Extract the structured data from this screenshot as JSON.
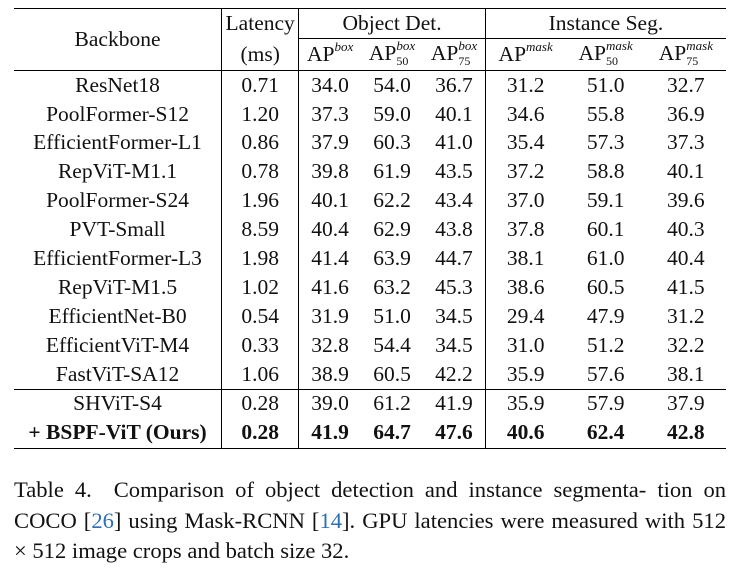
{
  "table": {
    "header": {
      "backbone": "Backbone",
      "latency_line1": "Latency",
      "latency_line2": "(ms)",
      "group_det": "Object Det.",
      "group_seg": "Instance Seg.",
      "sub_cols": [
        {
          "base": "AP",
          "sup": "box",
          "sub": ""
        },
        {
          "base": "AP",
          "sup": "box",
          "sub": "50"
        },
        {
          "base": "AP",
          "sup": "box",
          "sub": "75"
        },
        {
          "base": "AP",
          "sup": "mask",
          "sub": ""
        },
        {
          "base": "AP",
          "sup": "mask",
          "sub": "50"
        },
        {
          "base": "AP",
          "sup": "mask",
          "sub": "75"
        }
      ]
    },
    "rows": [
      {
        "backbone": "ResNet18",
        "latency": "0.71",
        "ap_box": "34.0",
        "ap_box50": "54.0",
        "ap_box75": "36.7",
        "ap_mask": "31.2",
        "ap_mask50": "51.0",
        "ap_mask75": "32.7"
      },
      {
        "backbone": "PoolFormer-S12",
        "latency": "1.20",
        "ap_box": "37.3",
        "ap_box50": "59.0",
        "ap_box75": "40.1",
        "ap_mask": "34.6",
        "ap_mask50": "55.8",
        "ap_mask75": "36.9"
      },
      {
        "backbone": "EfficientFormer-L1",
        "latency": "0.86",
        "ap_box": "37.9",
        "ap_box50": "60.3",
        "ap_box75": "41.0",
        "ap_mask": "35.4",
        "ap_mask50": "57.3",
        "ap_mask75": "37.3"
      },
      {
        "backbone": "RepViT-M1.1",
        "latency": "0.78",
        "ap_box": "39.8",
        "ap_box50": "61.9",
        "ap_box75": "43.5",
        "ap_mask": "37.2",
        "ap_mask50": "58.8",
        "ap_mask75": "40.1"
      },
      {
        "backbone": "PoolFormer-S24",
        "latency": "1.96",
        "ap_box": "40.1",
        "ap_box50": "62.2",
        "ap_box75": "43.4",
        "ap_mask": "37.0",
        "ap_mask50": "59.1",
        "ap_mask75": "39.6"
      },
      {
        "backbone": "PVT-Small",
        "latency": "8.59",
        "ap_box": "40.4",
        "ap_box50": "62.9",
        "ap_box75": "43.8",
        "ap_mask": "37.8",
        "ap_mask50": "60.1",
        "ap_mask75": "40.3"
      },
      {
        "backbone": "EfficientFormer-L3",
        "latency": "1.98",
        "ap_box": "41.4",
        "ap_box50": "63.9",
        "ap_box75": "44.7",
        "ap_mask": "38.1",
        "ap_mask50": "61.0",
        "ap_mask75": "40.4"
      },
      {
        "backbone": "RepViT-M1.5",
        "latency": "1.02",
        "ap_box": "41.6",
        "ap_box50": "63.2",
        "ap_box75": "45.3",
        "ap_mask": "38.6",
        "ap_mask50": "60.5",
        "ap_mask75": "41.5"
      },
      {
        "backbone": "EfficientNet-B0",
        "latency": "0.54",
        "ap_box": "31.9",
        "ap_box50": "51.0",
        "ap_box75": "34.5",
        "ap_mask": "29.4",
        "ap_mask50": "47.9",
        "ap_mask75": "31.2"
      },
      {
        "backbone": "EfficientViT-M4",
        "latency": "0.33",
        "ap_box": "32.8",
        "ap_box50": "54.4",
        "ap_box75": "34.5",
        "ap_mask": "31.0",
        "ap_mask50": "51.2",
        "ap_mask75": "32.2"
      },
      {
        "backbone": "FastViT-SA12",
        "latency": "1.06",
        "ap_box": "38.9",
        "ap_box50": "60.5",
        "ap_box75": "42.2",
        "ap_mask": "35.9",
        "ap_mask50": "57.6",
        "ap_mask75": "38.1"
      }
    ],
    "baseline_row": {
      "backbone": "SHViT-S4",
      "latency": "0.28",
      "ap_box": "39.0",
      "ap_box50": "61.2",
      "ap_box75": "41.9",
      "ap_mask": "35.9",
      "ap_mask50": "57.9",
      "ap_mask75": "37.9"
    },
    "ours_row": {
      "backbone": "+ BSPF-ViT (Ours)",
      "latency": "0.28",
      "ap_box": "41.9",
      "ap_box50": "64.7",
      "ap_box75": "47.6",
      "ap_mask": "40.6",
      "ap_mask50": "62.4",
      "ap_mask75": "42.8"
    }
  },
  "caption": {
    "label": "Table 4.",
    "text_1": "Comparison of object detection and instance segmenta-",
    "text_2a": "tion on COCO [",
    "cite_1": "26",
    "text_2b": "] using Mask-RCNN [",
    "cite_2": "14",
    "text_2c": "]. GPU latencies were",
    "text_3": "measured with 512 × 512 image crops and batch size 32."
  }
}
